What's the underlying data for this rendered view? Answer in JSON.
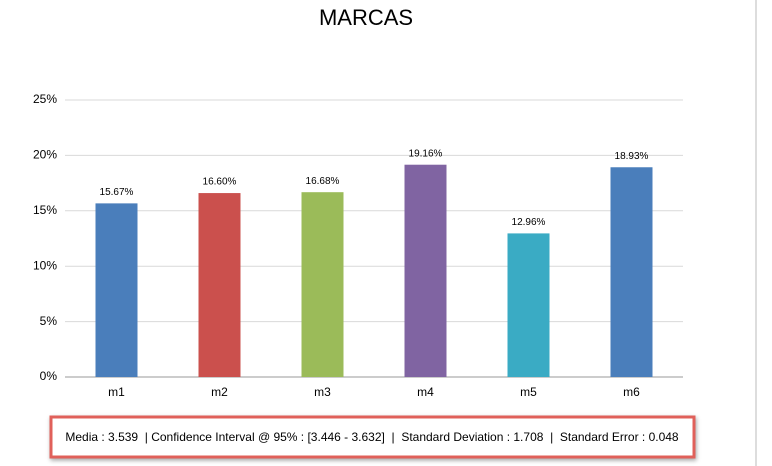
{
  "chart_data": {
    "type": "bar",
    "title": "MARCAS",
    "categories": [
      "m1",
      "m2",
      "m3",
      "m4",
      "m5",
      "m6"
    ],
    "values": [
      15.67,
      16.6,
      16.68,
      19.16,
      12.96,
      18.93
    ],
    "value_labels": [
      "15.67%",
      "16.60%",
      "16.68%",
      "19.16%",
      "12.96%",
      "18.93%"
    ],
    "colors": [
      "#4a7ebb",
      "#cb504d",
      "#9bbb59",
      "#8064a2",
      "#3aabc4",
      "#4a7ebb"
    ],
    "ylim": [
      0,
      25
    ],
    "yticks": [
      {
        "value": 0,
        "label": "0%"
      },
      {
        "value": 5,
        "label": "5%"
      },
      {
        "value": 10,
        "label": "10%"
      },
      {
        "value": 15,
        "label": "15%"
      },
      {
        "value": 20,
        "label": "20%"
      },
      {
        "value": 25,
        "label": "25%"
      }
    ],
    "grid": true,
    "annotation": "Media : 3.539  | Confidence Interval @ 95% : [3.446 - 3.632]  |  Standard Deviation : 1.708  |  Standard Error : 0.048"
  }
}
